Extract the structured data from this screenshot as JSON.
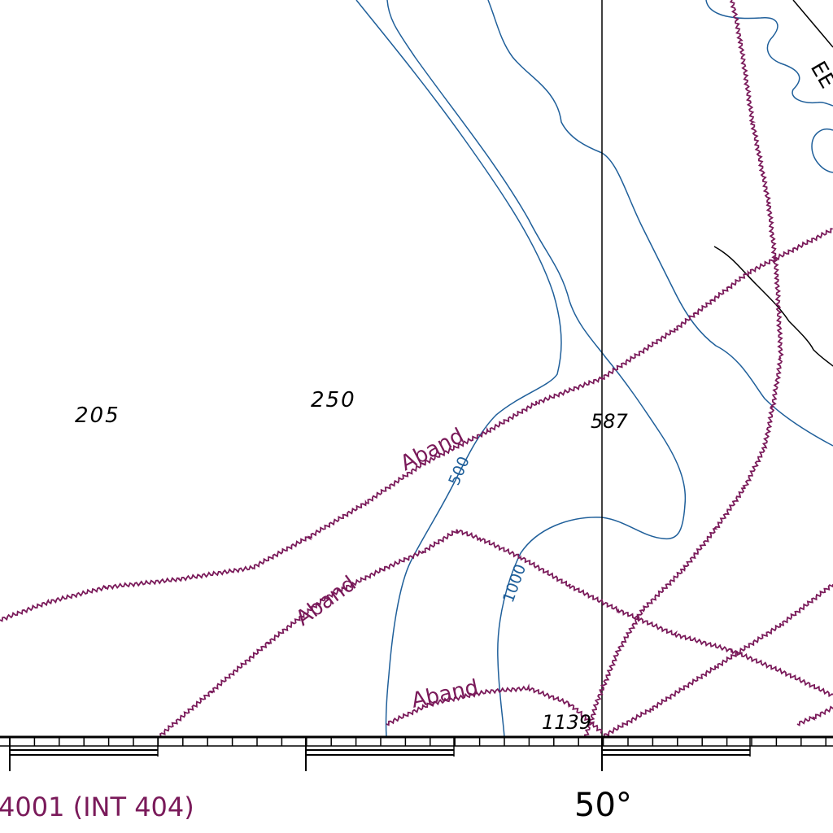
{
  "map": {
    "soundings": [
      "205",
      "250",
      "587",
      "1139"
    ],
    "contour_labels": [
      "500",
      "1000"
    ],
    "cable_labels": [
      "Aband",
      "Aband",
      "Aband"
    ],
    "corner_label": "EE",
    "chart_number": "4001 (INT 404)",
    "longitude_label": "50°",
    "colors": {
      "contour": "#1f5f9a",
      "cable": "#7a1a5a",
      "meridian": "#000000",
      "background": "#ffffff"
    }
  }
}
